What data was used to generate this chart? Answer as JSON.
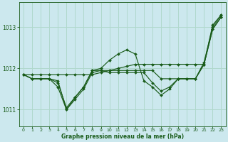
{
  "bg_color": "#cce8ee",
  "grid_color": "#b0d8cc",
  "line_color": "#1a5c1a",
  "xlabel": "Graphe pression niveau de la mer (hPa)",
  "xlim": [
    -0.5,
    23.5
  ],
  "ylim": [
    1010.6,
    1013.6
  ],
  "yticks": [
    1011,
    1012,
    1013
  ],
  "xticks": [
    0,
    1,
    2,
    3,
    4,
    5,
    6,
    7,
    8,
    9,
    10,
    11,
    12,
    13,
    14,
    15,
    16,
    17,
    18,
    19,
    20,
    21,
    22,
    23
  ],
  "series": [
    [
      1011.85,
      1011.85,
      1011.85,
      1011.85,
      1011.85,
      1011.85,
      1011.85,
      1011.85,
      1011.85,
      1011.9,
      1011.95,
      1012.0,
      1012.05,
      1012.1,
      1012.1,
      1012.1,
      1012.1,
      1012.1,
      1012.1,
      1012.1,
      1012.1,
      1012.1,
      1013.05,
      1013.3
    ],
    [
      1011.85,
      1011.75,
      1011.75,
      1011.75,
      1011.7,
      1011.0,
      1011.3,
      1011.55,
      1011.95,
      1012.0,
      1012.2,
      1012.35,
      1012.45,
      1012.35,
      1011.7,
      1011.55,
      1011.35,
      1011.5,
      1011.75,
      1011.75,
      1011.75,
      1012.15,
      1013.0,
      1013.3
    ],
    [
      1011.85,
      1011.75,
      1011.75,
      1011.75,
      1011.55,
      1011.0,
      1011.25,
      1011.5,
      1011.9,
      1011.95,
      1011.9,
      1011.9,
      1011.9,
      1011.9,
      1011.9,
      1011.65,
      1011.45,
      1011.55,
      1011.75,
      1011.75,
      1011.75,
      1012.1,
      1012.95,
      1013.25
    ],
    [
      1011.85,
      1011.75,
      1011.75,
      1011.75,
      1011.65,
      1011.05,
      1011.3,
      1011.55,
      1011.95,
      1011.95,
      1011.95,
      1011.95,
      1011.95,
      1011.95,
      1011.95,
      1011.95,
      1011.75,
      1011.75,
      1011.75,
      1011.75,
      1011.75,
      1012.1,
      1012.95,
      1013.25
    ]
  ]
}
